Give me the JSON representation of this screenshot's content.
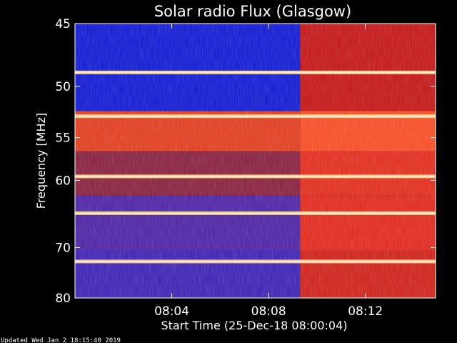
{
  "chart_data": {
    "type": "heatmap",
    "title": "Solar radio Flux (Glasgow)",
    "xlabel": "Start Time (25-Dec-18 08:00:04)",
    "ylabel": "Frequency [MHz]",
    "x_ticks": [
      "08:04",
      "08:08",
      "08:12"
    ],
    "x_tick_minutes": [
      4,
      8,
      12
    ],
    "x_range_minutes": [
      0,
      14.9
    ],
    "y_ticks": [
      45,
      50,
      55,
      60,
      70,
      80
    ],
    "y_range": [
      45,
      80
    ],
    "y_scale": "reciprocal",
    "transition_minute": 9.3,
    "regions": [
      {
        "freq_from": 45,
        "freq_to": 52.3,
        "before": "#0a14d8",
        "after": "#c81010"
      },
      {
        "freq_from": 52.3,
        "freq_to": 56.5,
        "before": "#e83a18",
        "after": "#ff4a20"
      },
      {
        "freq_from": 56.5,
        "freq_to": 62,
        "before": "#8a1a3c",
        "after": "#e82818"
      },
      {
        "freq_from": 62,
        "freq_to": 70.5,
        "before": "#4a1ea8",
        "after": "#e82418"
      },
      {
        "freq_from": 70.5,
        "freq_to": 80,
        "before": "#3a1cb8",
        "after": "#d41c14"
      }
    ],
    "bright_bands_mhz": [
      48.8,
      52.8,
      59.5,
      64.5,
      72.5
    ],
    "grid": false,
    "colors": {
      "background": "#000000",
      "frame": "#ffffff",
      "text": "#ffffff",
      "band": "#ffd080"
    }
  },
  "footer": {
    "updated": "Updated Wed Jan  2 18:15:40 2019"
  }
}
